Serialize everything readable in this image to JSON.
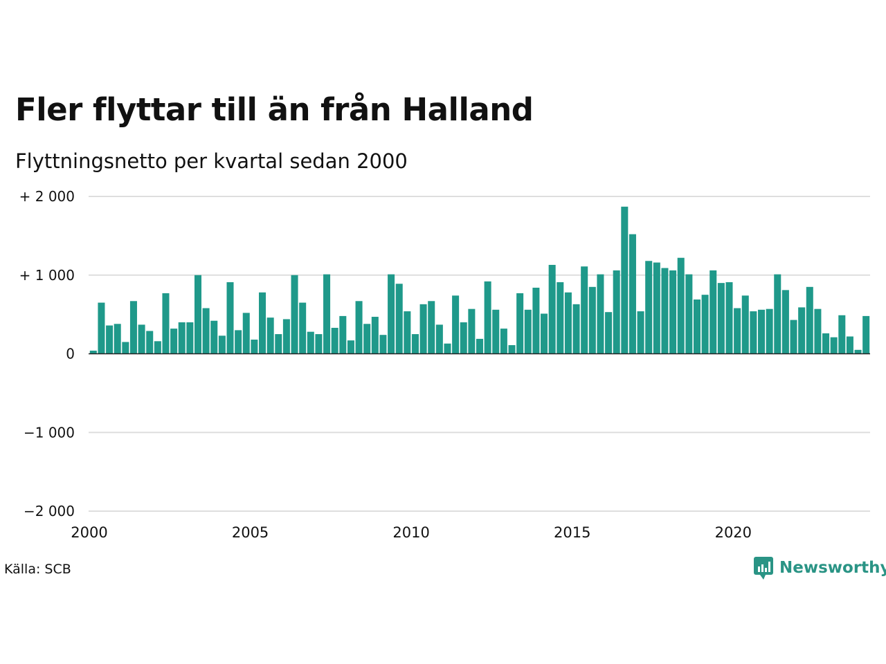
{
  "title": "Fler flyttar till än från Halland",
  "subtitle": "Flyttningsnetto per kvartal sedan 2000",
  "source": "Källa: SCB",
  "brand": {
    "name": "Newsworthy",
    "icon": "newsworthy-logo-icon"
  },
  "colors": {
    "bar": "#1f998a",
    "grid": "#dedede",
    "zero": "#222222",
    "brand": "#2a9485"
  },
  "chart_data": {
    "type": "bar",
    "title": "Fler flyttar till än från Halland",
    "subtitle": "Flyttningsnetto per kvartal sedan 2000",
    "ylim": [
      -2000,
      2000
    ],
    "y_ticks": [
      {
        "value": 2000,
        "label": "+ 2 000"
      },
      {
        "value": 1000,
        "label": "+ 1 000"
      },
      {
        "value": 0,
        "label": "0"
      },
      {
        "value": -1000,
        "label": "−1 000"
      },
      {
        "value": -2000,
        "label": "−2 000"
      }
    ],
    "x_ticks": [
      {
        "value": 2000,
        "label": "2000"
      },
      {
        "value": 2005,
        "label": "2005"
      },
      {
        "value": 2010,
        "label": "2010"
      },
      {
        "value": 2015,
        "label": "2015"
      },
      {
        "value": 2020,
        "label": "2020"
      }
    ],
    "grid": true,
    "categories": [
      "2000 K1",
      "2000 K2",
      "2000 K3",
      "2000 K4",
      "2001 K1",
      "2001 K2",
      "2001 K3",
      "2001 K4",
      "2002 K1",
      "2002 K2",
      "2002 K3",
      "2002 K4",
      "2003 K1",
      "2003 K2",
      "2003 K3",
      "2003 K4",
      "2004 K1",
      "2004 K2",
      "2004 K3",
      "2004 K4",
      "2005 K1",
      "2005 K2",
      "2005 K3",
      "2005 K4",
      "2006 K1",
      "2006 K2",
      "2006 K3",
      "2006 K4",
      "2007 K1",
      "2007 K2",
      "2007 K3",
      "2007 K4",
      "2008 K1",
      "2008 K2",
      "2008 K3",
      "2008 K4",
      "2009 K1",
      "2009 K2",
      "2009 K3",
      "2009 K4",
      "2010 K1",
      "2010 K2",
      "2010 K3",
      "2010 K4",
      "2011 K1",
      "2011 K2",
      "2011 K3",
      "2011 K4",
      "2012 K1",
      "2012 K2",
      "2012 K3",
      "2012 K4",
      "2013 K1",
      "2013 K2",
      "2013 K3",
      "2013 K4",
      "2014 K1",
      "2014 K2",
      "2014 K3",
      "2014 K4",
      "2015 K1",
      "2015 K2",
      "2015 K3",
      "2015 K4",
      "2016 K1",
      "2016 K2",
      "2016 K3",
      "2016 K4",
      "2017 K1",
      "2017 K2",
      "2017 K3",
      "2017 K4",
      "2018 K1",
      "2018 K2",
      "2018 K3",
      "2018 K4",
      "2019 K1",
      "2019 K2",
      "2019 K3",
      "2019 K4",
      "2020 K1",
      "2020 K2",
      "2020 K3",
      "2020 K4",
      "2021 K1",
      "2021 K2",
      "2021 K3",
      "2021 K4",
      "2022 K1",
      "2022 K2",
      "2022 K3",
      "2022 K4",
      "2023 K1",
      "2023 K2",
      "2023 K3",
      "2023 K4",
      "2024 K1"
    ],
    "values": [
      40,
      650,
      360,
      380,
      150,
      670,
      370,
      290,
      160,
      770,
      320,
      400,
      400,
      1000,
      580,
      420,
      230,
      910,
      300,
      520,
      180,
      780,
      460,
      250,
      440,
      1000,
      650,
      280,
      250,
      1010,
      330,
      480,
      170,
      670,
      380,
      470,
      240,
      1010,
      890,
      540,
      250,
      630,
      670,
      370,
      130,
      740,
      400,
      570,
      190,
      920,
      560,
      320,
      110,
      770,
      560,
      840,
      510,
      1130,
      910,
      780,
      630,
      1110,
      850,
      1010,
      530,
      1060,
      1870,
      1520,
      540,
      1180,
      1160,
      1090,
      1060,
      1220,
      1010,
      690,
      750,
      1060,
      900,
      910,
      580,
      740,
      540,
      560,
      570,
      1010,
      810,
      430,
      590,
      850,
      570,
      260,
      210,
      490,
      220,
      50,
      480
    ]
  }
}
